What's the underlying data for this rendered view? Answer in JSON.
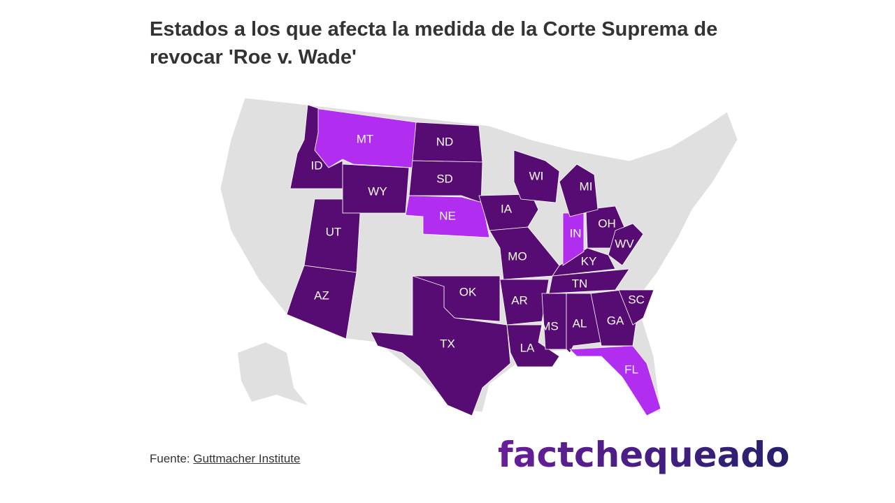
{
  "title": "Estados a los que afecta la medida de la Corte Suprema de revocar 'Roe v. Wade'",
  "colors": {
    "affected": "#560c72",
    "affected_light": "#b12ef0",
    "other": "#e0e0e0"
  },
  "states": [
    {
      "code": "MT",
      "shade": "light"
    },
    {
      "code": "ID",
      "shade": "dark"
    },
    {
      "code": "ND",
      "shade": "dark"
    },
    {
      "code": "SD",
      "shade": "dark"
    },
    {
      "code": "WY",
      "shade": "dark"
    },
    {
      "code": "NE",
      "shade": "light"
    },
    {
      "code": "UT",
      "shade": "dark"
    },
    {
      "code": "AZ",
      "shade": "dark"
    },
    {
      "code": "IA",
      "shade": "dark"
    },
    {
      "code": "MO",
      "shade": "dark"
    },
    {
      "code": "AR",
      "shade": "dark"
    },
    {
      "code": "OK",
      "shade": "dark"
    },
    {
      "code": "TX",
      "shade": "dark"
    },
    {
      "code": "LA",
      "shade": "dark"
    },
    {
      "code": "MS",
      "shade": "dark"
    },
    {
      "code": "AL",
      "shade": "dark"
    },
    {
      "code": "GA",
      "shade": "dark"
    },
    {
      "code": "SC",
      "shade": "dark"
    },
    {
      "code": "FL",
      "shade": "light"
    },
    {
      "code": "TN",
      "shade": "dark"
    },
    {
      "code": "KY",
      "shade": "dark"
    },
    {
      "code": "IN",
      "shade": "light"
    },
    {
      "code": "OH",
      "shade": "dark"
    },
    {
      "code": "WV",
      "shade": "dark"
    },
    {
      "code": "MI",
      "shade": "dark"
    },
    {
      "code": "WI",
      "shade": "dark"
    }
  ],
  "source": {
    "label": "Fuente:",
    "link": "Guttmacher Institute"
  },
  "logo": "factchequeado"
}
